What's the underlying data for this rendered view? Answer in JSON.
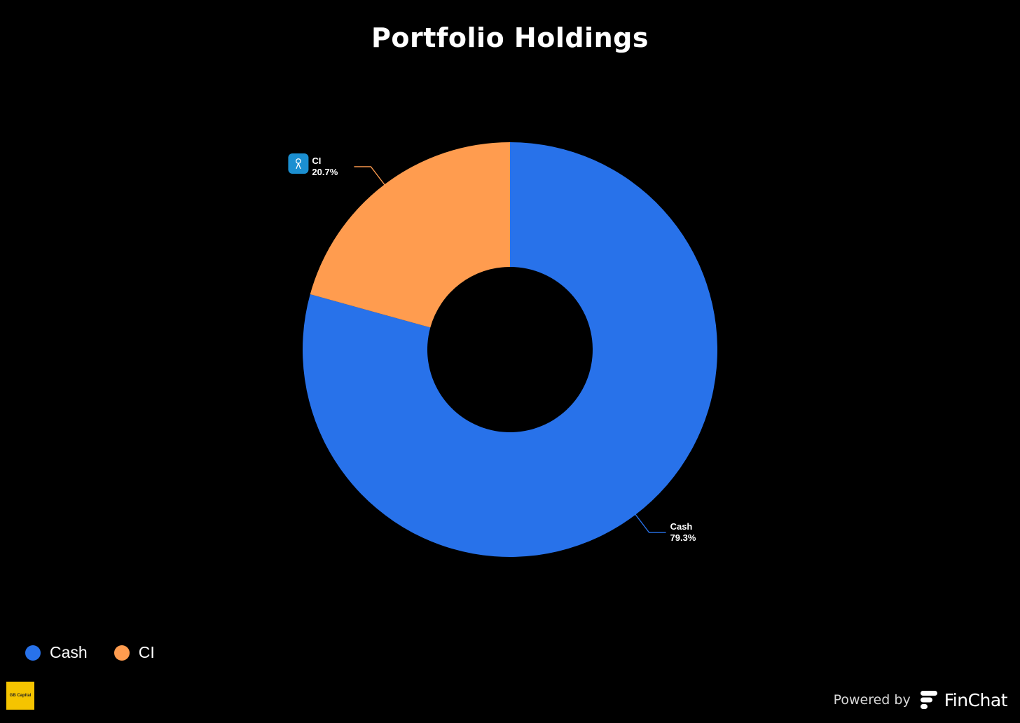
{
  "chart_data": {
    "type": "pie",
    "title": "Portfolio Holdings",
    "donut": true,
    "slices": [
      {
        "label": "Cash",
        "value": 79.3,
        "display": "79.3%",
        "color": "#2872ea"
      },
      {
        "label": "CI",
        "value": 20.7,
        "display": "20.7%",
        "color": "#ff9c4f",
        "icon": "ticker-logo-icon"
      }
    ],
    "legend": {
      "placement": "bottom-left",
      "items": [
        {
          "label": "Cash",
          "color": "#2872ea"
        },
        {
          "label": "CI",
          "color": "#ff9c4f"
        }
      ]
    }
  },
  "footer": {
    "brand_logo_text": "GB Capital",
    "powered_by": "Powered by",
    "brand": "FinChat"
  }
}
